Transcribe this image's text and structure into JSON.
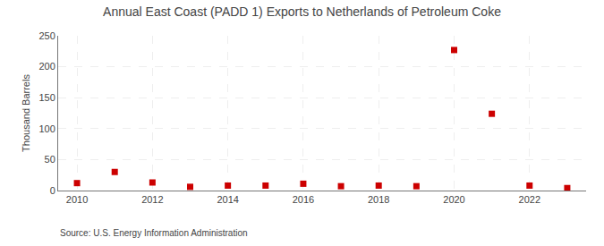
{
  "chart_data": {
    "type": "scatter",
    "title": "Annual East Coast (PADD 1) Exports to Netherlands of Petroleum Coke",
    "ylabel": "Thousand Barrels",
    "source": "Source: U.S. Energy Information Administration",
    "x": [
      2010,
      2011,
      2012,
      2013,
      2014,
      2015,
      2016,
      2017,
      2018,
      2019,
      2020,
      2021,
      2022,
      2023
    ],
    "values": [
      12,
      30,
      13,
      6,
      8,
      8,
      11,
      7,
      8,
      7,
      227,
      124,
      8,
      4
    ],
    "color": "#cc0000",
    "marker": "square",
    "xlim": [
      2009.5,
      2023.5
    ],
    "xticks": [
      2010,
      2012,
      2014,
      2016,
      2018,
      2020,
      2022
    ],
    "ylim": [
      0,
      250
    ],
    "yticks": [
      0,
      50,
      100,
      150,
      200,
      250
    ],
    "grid": true
  }
}
